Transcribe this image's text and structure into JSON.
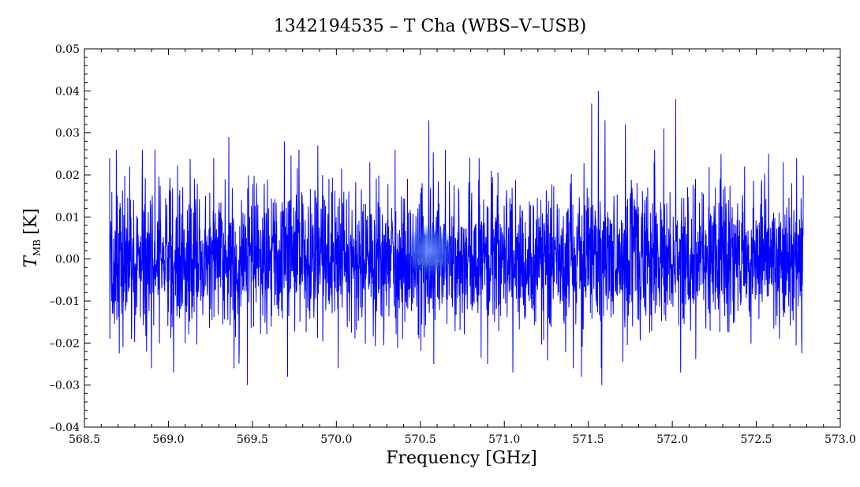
{
  "chart_data": {
    "type": "line",
    "title": "1342194535 – T Cha (WBS–V–USB)",
    "xlabel": "Frequency [GHz]",
    "ylabel_main": "T",
    "ylabel_sub": "MB",
    "ylabel_unit": "[K]",
    "xlim": [
      568.5,
      573.0
    ],
    "ylim": [
      -0.04,
      0.05
    ],
    "xticks": [
      "568.5",
      "569.0",
      "569.5",
      "570.0",
      "570.5",
      "571.0",
      "571.5",
      "572.0",
      "572.5",
      "573.0"
    ],
    "xtick_values": [
      568.5,
      569.0,
      569.5,
      570.0,
      570.5,
      571.0,
      571.5,
      572.0,
      572.5,
      573.0
    ],
    "yticks": [
      "–0.04",
      "–0.03",
      "–0.02",
      "–0.01",
      "0.00",
      "0.01",
      "0.02",
      "0.03",
      "0.04",
      "0.05"
    ],
    "ytick_values": [
      -0.04,
      -0.03,
      -0.02,
      -0.01,
      0.0,
      0.01,
      0.02,
      0.03,
      0.04,
      0.05
    ],
    "grid": false,
    "series": [
      {
        "color": "#0000ff",
        "x_range": [
          568.65,
          572.78
        ],
        "noise_sigma": 0.0085,
        "spikes": [
          {
            "x": 568.65,
            "y": 0.024
          },
          {
            "x": 568.67,
            "y": -0.013
          },
          {
            "x": 568.69,
            "y": 0.026
          },
          {
            "x": 568.77,
            "y": 0.022
          },
          {
            "x": 568.78,
            "y": -0.019
          },
          {
            "x": 568.87,
            "y": -0.022
          },
          {
            "x": 568.92,
            "y": 0.026
          },
          {
            "x": 569.03,
            "y": -0.027
          },
          {
            "x": 569.1,
            "y": -0.02
          },
          {
            "x": 569.27,
            "y": 0.024
          },
          {
            "x": 569.36,
            "y": 0.029
          },
          {
            "x": 569.47,
            "y": -0.03
          },
          {
            "x": 569.69,
            "y": 0.028
          },
          {
            "x": 569.71,
            "y": -0.028
          },
          {
            "x": 569.89,
            "y": 0.027
          },
          {
            "x": 570.01,
            "y": -0.026
          },
          {
            "x": 570.2,
            "y": 0.023
          },
          {
            "x": 570.35,
            "y": 0.026
          },
          {
            "x": 570.55,
            "y": 0.033
          },
          {
            "x": 570.58,
            "y": -0.025
          },
          {
            "x": 570.85,
            "y": 0.024
          },
          {
            "x": 570.9,
            "y": -0.025
          },
          {
            "x": 571.05,
            "y": -0.027
          },
          {
            "x": 571.41,
            "y": -0.026
          },
          {
            "x": 571.46,
            "y": -0.028
          },
          {
            "x": 571.52,
            "y": 0.037
          },
          {
            "x": 571.56,
            "y": 0.04
          },
          {
            "x": 571.58,
            "y": -0.03
          },
          {
            "x": 571.6,
            "y": 0.033
          },
          {
            "x": 571.72,
            "y": 0.032
          },
          {
            "x": 571.95,
            "y": 0.031
          },
          {
            "x": 572.02,
            "y": 0.038
          },
          {
            "x": 572.05,
            "y": -0.027
          },
          {
            "x": 572.29,
            "y": 0.025
          },
          {
            "x": 572.43,
            "y": 0.022
          },
          {
            "x": 572.66,
            "y": 0.023
          },
          {
            "x": 572.74,
            "y": 0.024
          },
          {
            "x": 572.77,
            "y": -0.018
          }
        ]
      }
    ],
    "watermark": "WISH"
  }
}
